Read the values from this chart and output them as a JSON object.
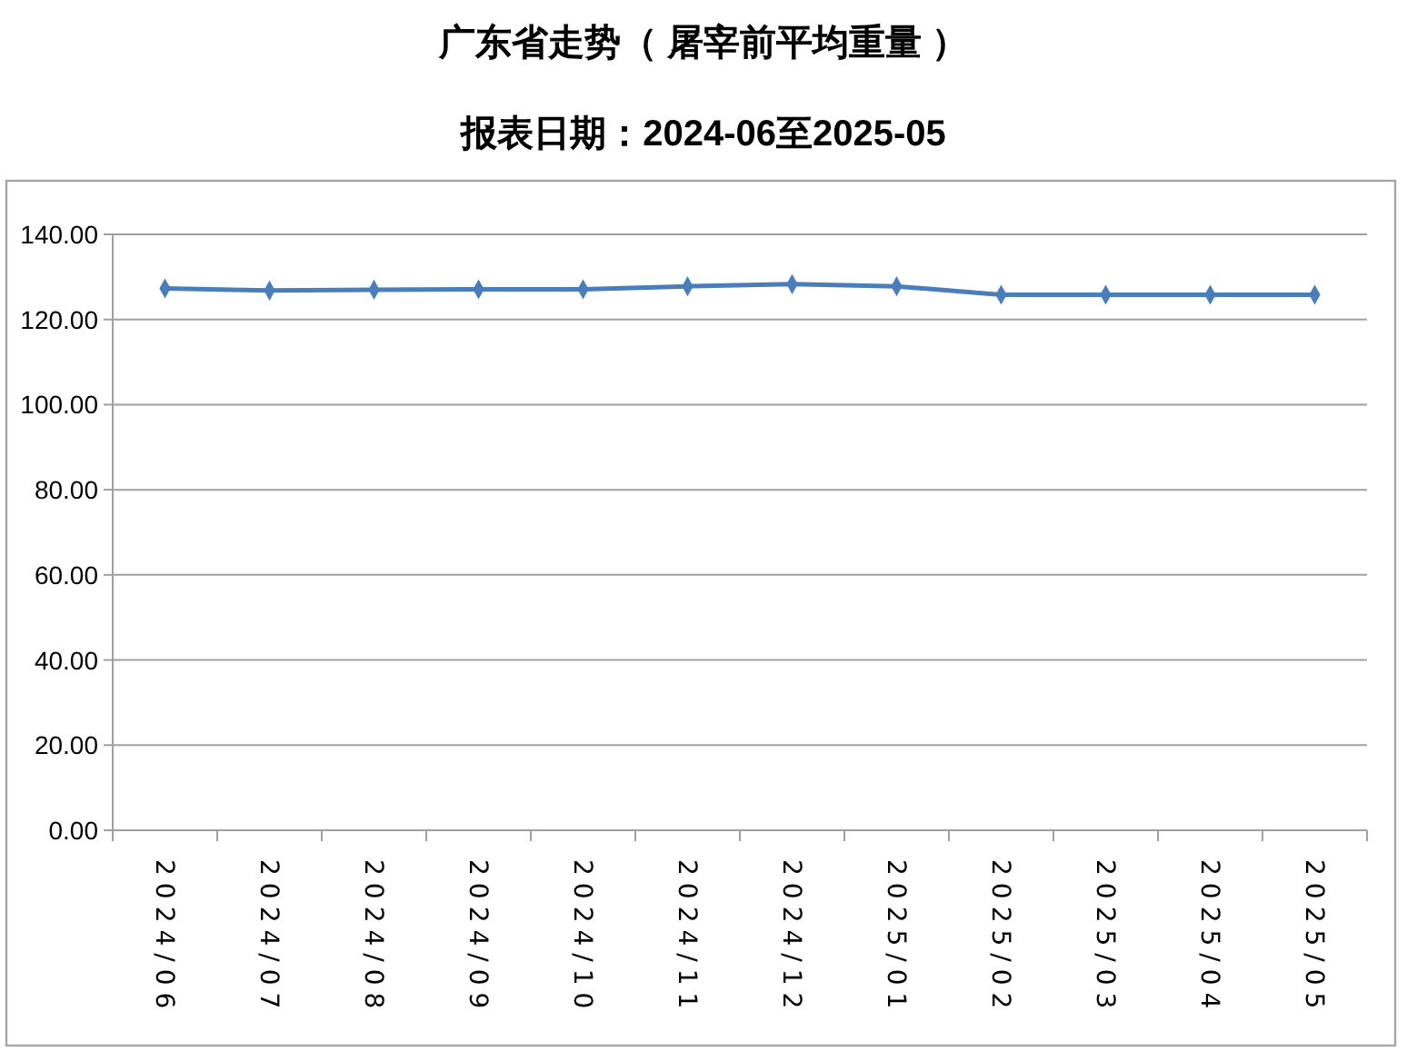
{
  "chart_data": {
    "type": "line",
    "title": "广东省走势（ 屠宰前平均重量 ）",
    "subtitle": "报表日期：2024-06至2025-05",
    "categories": [
      "2024/06",
      "2024/07",
      "2024/08",
      "2024/09",
      "2024/10",
      "2024/11",
      "2024/12",
      "2025/01",
      "2025/02",
      "2025/03",
      "2025/04",
      "2025/05"
    ],
    "series": [
      {
        "color": "#4a7ebb",
        "values": [
          127.3,
          126.8,
          127.0,
          127.1,
          127.1,
          127.8,
          128.3,
          127.8,
          125.8,
          125.8,
          125.8,
          125.8
        ]
      }
    ],
    "ylim": [
      0,
      140
    ],
    "yticks": [
      {
        "value": 0,
        "label": "0.00"
      },
      {
        "value": 20,
        "label": "20.00"
      },
      {
        "value": 40,
        "label": "40.00"
      },
      {
        "value": 60,
        "label": "60.00"
      },
      {
        "value": 80,
        "label": "80.00"
      },
      {
        "value": 100,
        "label": "100.00"
      },
      {
        "value": 120,
        "label": "120.00"
      },
      {
        "value": 140,
        "label": "140.00"
      }
    ],
    "grid": "y",
    "marker": "diamond"
  }
}
